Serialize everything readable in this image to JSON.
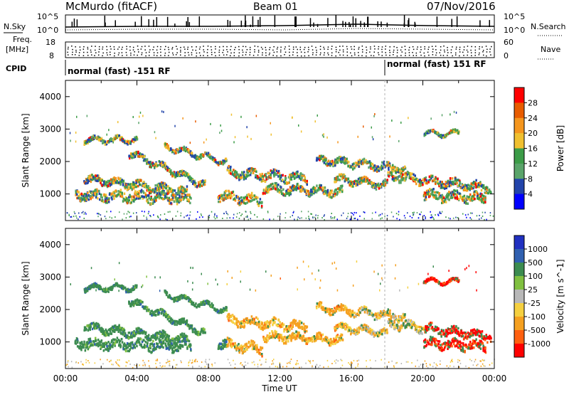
{
  "header": {
    "site": "McMurdo (fitACF)",
    "beam": "Beam 01",
    "date": "07/Nov/2016"
  },
  "top_panel": {
    "left_label": "N.Sky",
    "right_label": "N.Search",
    "left_ticks": [
      "10^5",
      "10^0"
    ],
    "right_ticks": [
      "10^5",
      "10^0"
    ]
  },
  "freq_panel": {
    "left_label_line1": "Freq.",
    "left_label_line2": "[MHz]",
    "right_label": "Nave",
    "left_ticks": [
      "18",
      "8"
    ],
    "right_ticks": [
      "60",
      "0"
    ]
  },
  "cpid_panel": {
    "label": "CPID",
    "segments": [
      {
        "text": "normal (fast) -151 RF",
        "start_hour": 0
      },
      {
        "text": "normal (fast) 151 RF",
        "start_hour": 18
      }
    ]
  },
  "colorbar_power": {
    "title": "Power [dB]",
    "ticks": [
      "28",
      "24",
      "20",
      "16",
      "12",
      "8",
      "4"
    ],
    "colors": [
      "#ff0000",
      "#e85c00",
      "#f5961e",
      "#f0c030",
      "#3c9c48",
      "#5aa46a",
      "#2244aa",
      "#0000ff"
    ]
  },
  "colorbar_velocity": {
    "title": "Velocity [m s^-1]",
    "ticks": [
      "1000",
      "500",
      "100",
      "25",
      "-25",
      "-100",
      "-500",
      "-1000"
    ],
    "colors": [
      "#2030c0",
      "#3060b0",
      "#3c8c50",
      "#80c040",
      "#b8b8b8",
      "#f5d040",
      "#f5a020",
      "#ff6010",
      "#ff0000"
    ]
  },
  "chart_data": [
    {
      "type": "heatmap",
      "title": "",
      "xlabel": "Time UT",
      "ylabel": "Slant Range [km]",
      "x_ticks": [
        "00:00",
        "04:00",
        "08:00",
        "12:00",
        "16:00",
        "20:00",
        "00:00"
      ],
      "y_ticks": [
        "1000",
        "2000",
        "3000",
        "4000"
      ],
      "xlim": [
        0,
        24
      ],
      "ylim": [
        180,
        4500
      ],
      "colorbar": "Power [dB]",
      "colorbar_range": [
        0,
        30
      ]
    },
    {
      "type": "heatmap",
      "title": "",
      "xlabel": "Time UT",
      "ylabel": "Slant Range [km]",
      "x_ticks": [
        "00:00",
        "04:00",
        "08:00",
        "12:00",
        "16:00",
        "20:00",
        "00:00"
      ],
      "y_ticks": [
        "1000",
        "2000",
        "3000",
        "4000"
      ],
      "xlim": [
        0,
        24
      ],
      "ylim": [
        180,
        4500
      ],
      "colorbar": "Velocity [m s^-1]",
      "colorbar_range": [
        -1000,
        1000
      ]
    }
  ],
  "x_axis_label": "Time UT"
}
